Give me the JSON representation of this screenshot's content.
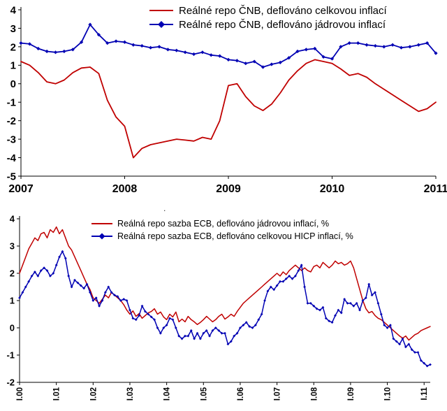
{
  "page": {
    "background": "#ffffff",
    "stray_dot": "."
  },
  "chart_data": [
    {
      "id": "cnb-real-repo",
      "type": "line",
      "title": "",
      "xlabel": "",
      "ylabel": "",
      "ylim": [
        -5,
        4
      ],
      "yticks": [
        4,
        3,
        2,
        1,
        0,
        -1,
        -2,
        -3,
        -4,
        -5
      ],
      "x_tick_labels": [
        "2007",
        "2008",
        "2009",
        "2010",
        "2011"
      ],
      "x_tick_every": 12,
      "x_unit": "month",
      "x_range": "2007-01 to 2011-01",
      "grid": false,
      "legend_position": "top-right",
      "legend": [
        {
          "label": "Reálné repo ČNB, deflováno celkovou inflací",
          "color": "#c00000",
          "marker": "none"
        },
        {
          "label": "Reálné repo ČNB, deflováno jádrovou inflací",
          "color": "#0000b3",
          "marker": "diamond"
        }
      ],
      "series": [
        {
          "name": "repo-cnb-celkova-inflace",
          "color": "#c00000",
          "marker": "none",
          "values": [
            1.2,
            1.0,
            0.6,
            0.1,
            0.0,
            0.2,
            0.6,
            0.85,
            0.9,
            0.55,
            -0.9,
            -1.8,
            -2.3,
            -4.0,
            -3.5,
            -3.3,
            -3.2,
            -3.1,
            -3.0,
            -3.05,
            -3.1,
            -2.9,
            -3.0,
            -2.0,
            -0.1,
            0.0,
            -0.7,
            -1.2,
            -1.45,
            -1.1,
            -0.5,
            0.2,
            0.7,
            1.1,
            1.3,
            1.2,
            1.1,
            0.8,
            0.45,
            0.55,
            0.35,
            0.0,
            -0.3,
            -0.6,
            -0.9,
            -1.2,
            -1.5,
            -1.35,
            -1.0
          ]
        },
        {
          "name": "repo-cnb-jadrova-inflace",
          "color": "#0000b3",
          "marker": "diamond",
          "values": [
            2.2,
            2.15,
            1.9,
            1.75,
            1.7,
            1.75,
            1.85,
            2.25,
            3.2,
            2.65,
            2.2,
            2.3,
            2.25,
            2.1,
            2.05,
            1.95,
            2.0,
            1.85,
            1.8,
            1.7,
            1.6,
            1.7,
            1.55,
            1.5,
            1.3,
            1.25,
            1.1,
            1.2,
            0.9,
            1.05,
            1.15,
            1.4,
            1.75,
            1.85,
            1.9,
            1.45,
            1.35,
            2.0,
            2.2,
            2.2,
            2.1,
            2.05,
            2.0,
            2.1,
            1.95,
            2.0,
            2.1,
            2.2,
            1.65
          ]
        }
      ]
    },
    {
      "id": "ecb-real-repo",
      "type": "line",
      "title": "",
      "xlabel": "",
      "ylabel": "",
      "ylim": [
        -2,
        4
      ],
      "yticks": [
        4,
        3,
        2,
        1,
        0,
        -1,
        -2
      ],
      "x_tick_labels": [
        "I.00",
        "I.01",
        "I.02",
        "I.03",
        "I.04",
        "I.05",
        "I.06",
        "I.07",
        "I.08",
        "I.09",
        "I.10",
        "I.11"
      ],
      "x_tick_every": 12,
      "x_unit": "month",
      "x_range": "2000-01 to 2011-03",
      "grid": false,
      "legend_position": "top-center",
      "legend": [
        {
          "label": "Reálná repo sazba ECB, deflováno jádrovou inflací, %",
          "color": "#c00000",
          "marker": "none"
        },
        {
          "label": "Reálná repo sazba ECB, deflováno celkovou HICP inflací, %",
          "color": "#0000b3",
          "marker": "diamond"
        }
      ],
      "series": [
        {
          "name": "repo-ecb-jadrova-inflace",
          "color": "#c00000",
          "marker": "none",
          "values": [
            2.0,
            2.3,
            2.6,
            2.9,
            3.1,
            3.3,
            3.2,
            3.45,
            3.5,
            3.3,
            3.6,
            3.5,
            3.7,
            3.45,
            3.6,
            3.3,
            3.0,
            2.85,
            2.6,
            2.35,
            2.1,
            1.85,
            1.6,
            1.4,
            1.1,
            1.0,
            0.9,
            1.05,
            1.2,
            1.1,
            1.3,
            1.2,
            1.1,
            1.0,
            0.85,
            0.65,
            0.5,
            0.62,
            0.42,
            0.52,
            0.35,
            0.45,
            0.55,
            0.6,
            0.7,
            0.5,
            0.58,
            0.4,
            0.3,
            0.5,
            0.4,
            0.58,
            0.22,
            0.32,
            0.22,
            0.42,
            0.3,
            0.22,
            0.12,
            0.2,
            0.3,
            0.42,
            0.32,
            0.22,
            0.3,
            0.42,
            0.5,
            0.32,
            0.4,
            0.5,
            0.42,
            0.6,
            0.75,
            0.9,
            1.0,
            1.1,
            1.2,
            1.3,
            1.4,
            1.5,
            1.6,
            1.7,
            1.8,
            1.9,
            2.0,
            1.9,
            2.05,
            1.95,
            2.1,
            2.2,
            2.3,
            2.2,
            2.1,
            2.2,
            2.1,
            2.05,
            2.25,
            2.3,
            2.2,
            2.4,
            2.3,
            2.2,
            2.3,
            2.45,
            2.35,
            2.4,
            2.3,
            2.35,
            2.45,
            2.2,
            1.8,
            1.4,
            1.0,
            0.7,
            0.55,
            0.6,
            0.45,
            0.35,
            0.3,
            0.2,
            0.1,
            0.0,
            -0.1,
            -0.2,
            -0.3,
            -0.38,
            -0.3,
            -0.45,
            -0.35,
            -0.25,
            -0.2,
            -0.1,
            -0.05,
            0.0,
            0.05
          ]
        },
        {
          "name": "repo-ecb-hicp-inflace",
          "color": "#0000b3",
          "marker": "diamond",
          "values": [
            1.1,
            1.3,
            1.5,
            1.7,
            1.9,
            2.05,
            1.9,
            2.1,
            2.2,
            2.1,
            1.9,
            2.0,
            2.3,
            2.6,
            2.8,
            2.55,
            1.9,
            1.5,
            1.75,
            1.65,
            1.55,
            1.45,
            1.6,
            1.3,
            1.0,
            1.1,
            0.8,
            1.0,
            1.3,
            1.5,
            1.3,
            1.2,
            1.15,
            1.0,
            1.05,
            1.0,
            0.65,
            0.35,
            0.3,
            0.45,
            0.8,
            0.6,
            0.5,
            0.4,
            0.3,
            0.0,
            -0.2,
            0.0,
            0.1,
            0.35,
            0.3,
            0.0,
            -0.3,
            -0.4,
            -0.3,
            -0.3,
            -0.1,
            -0.4,
            -0.2,
            -0.4,
            -0.2,
            -0.1,
            -0.3,
            -0.1,
            0.0,
            -0.1,
            -0.2,
            -0.2,
            -0.6,
            -0.5,
            -0.3,
            -0.2,
            0.0,
            0.1,
            0.2,
            0.05,
            0.0,
            0.1,
            0.3,
            0.5,
            1.0,
            1.35,
            1.5,
            1.4,
            1.55,
            1.7,
            1.7,
            1.8,
            1.9,
            1.8,
            1.9,
            2.1,
            2.3,
            1.5,
            0.9,
            0.9,
            0.8,
            0.7,
            0.65,
            0.75,
            0.35,
            0.25,
            0.2,
            0.45,
            0.65,
            0.55,
            1.05,
            0.9,
            0.9,
            0.8,
            0.9,
            0.65,
            1.0,
            1.1,
            1.6,
            1.2,
            1.3,
            0.9,
            0.5,
            0.1,
            0.0,
            0.1,
            -0.4,
            -0.5,
            -0.6,
            -0.4,
            -0.7,
            -0.6,
            -0.8,
            -0.9,
            -0.9,
            -1.2,
            -1.3,
            -1.4,
            -1.35
          ]
        }
      ]
    }
  ]
}
